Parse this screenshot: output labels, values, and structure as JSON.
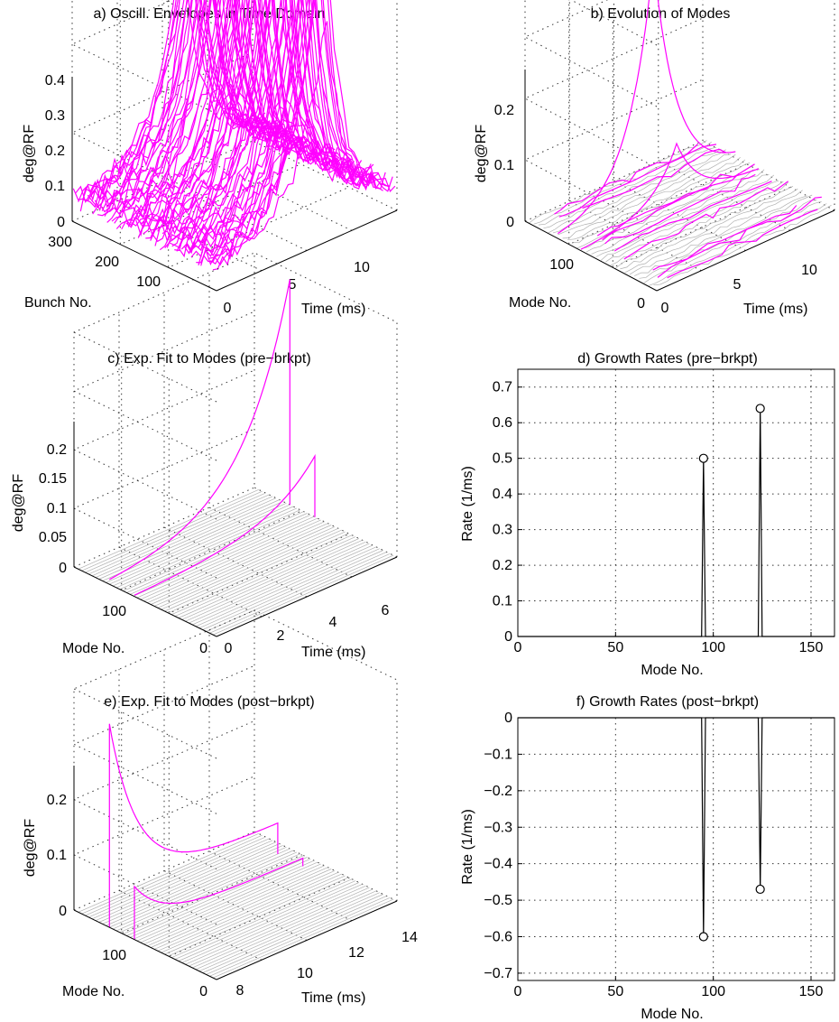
{
  "chart_data": [
    {
      "id": "a",
      "type": "3d-line",
      "title": "a) Oscill. Envelopes in Time Domain",
      "xlabel": "Time   (ms)",
      "ylabel": "Bunch No.",
      "zlabel": "deg@RF",
      "x_ticks": [
        "0",
        "5",
        "10"
      ],
      "y_ticks": [
        "100",
        "200",
        "300"
      ],
      "z_ticks": [
        "0",
        "0.1",
        "0.2",
        "0.3",
        "0.4"
      ],
      "xlim": [
        0,
        13
      ],
      "ylim": [
        0,
        330
      ],
      "zlim": [
        0,
        0.4
      ],
      "peak_time_ms": 8,
      "peak_amplitude": 0.38,
      "line_color": "#ff00ff",
      "grid": true
    },
    {
      "id": "b",
      "type": "3d-line",
      "title": "b) Evolution of Modes",
      "xlabel": "Time (ms)",
      "ylabel": "Mode No.",
      "zlabel": "deg@RF",
      "x_ticks": [
        "0",
        "5",
        "10"
      ],
      "y_ticks": [
        "0",
        "100"
      ],
      "z_ticks": [
        "0",
        "0.1",
        "0.2"
      ],
      "xlim": [
        0,
        13
      ],
      "ylim": [
        0,
        165
      ],
      "zlim": [
        0,
        0.25
      ],
      "series": [
        {
          "mode": 124,
          "peak_time_ms": 7,
          "peak_value": 0.24
        },
        {
          "mode": 95,
          "peak_time_ms": 7,
          "peak_value": 0.065
        }
      ],
      "line_color": "#ff00ff",
      "background_line_color": "#b0b0b0",
      "grid": true
    },
    {
      "id": "c",
      "type": "3d-line",
      "title": "c) Exp. Fit to Modes (pre−brkpt)",
      "xlabel": "Time (ms)",
      "ylabel": "Mode No.",
      "zlabel": "deg@RF",
      "x_ticks": [
        "0",
        "2",
        "4",
        "6"
      ],
      "y_ticks": [
        "0",
        "100"
      ],
      "z_ticks": [
        "0",
        "0.05",
        "0.1",
        "0.15",
        "0.2"
      ],
      "xlim": [
        0,
        7
      ],
      "ylim": [
        0,
        165
      ],
      "zlim": [
        0,
        0.25
      ],
      "series": [
        {
          "mode": 124,
          "end_time_ms": 7,
          "end_value": 0.24
        },
        {
          "mode": 95,
          "end_time_ms": 7,
          "end_value": 0.065
        }
      ],
      "line_color": "#ff00ff",
      "background_line_color": "#b0b0b0",
      "grid": true
    },
    {
      "id": "d",
      "type": "stem",
      "title": "d) Growth Rates (pre−brkpt)",
      "xlabel": "Mode No.",
      "ylabel": "Rate   (1/ms)",
      "x_ticks": [
        "0",
        "50",
        "100",
        "150"
      ],
      "y_ticks": [
        "0",
        "0.1",
        "0.2",
        "0.3",
        "0.4",
        "0.5",
        "0.6",
        "0.7"
      ],
      "xlim": [
        0,
        162
      ],
      "ylim": [
        0,
        0.75
      ],
      "points": [
        {
          "x": 95,
          "y": 0.5
        },
        {
          "x": 124,
          "y": 0.64
        }
      ],
      "grid": true
    },
    {
      "id": "e",
      "type": "3d-line",
      "title": "e) Exp. Fit to Modes (post−brkpt)",
      "xlabel": "Time (ms)",
      "ylabel": "Mode No.",
      "zlabel": "deg@RF",
      "x_ticks": [
        "8",
        "10",
        "12",
        "14"
      ],
      "y_ticks": [
        "0",
        "100"
      ],
      "z_ticks": [
        "0",
        "0.1",
        "0.2"
      ],
      "xlim": [
        7,
        14.5
      ],
      "ylim": [
        0,
        165
      ],
      "zlim": [
        0,
        0.25
      ],
      "series": [
        {
          "mode": 124,
          "start_time_ms": 7,
          "start_value": 0.23
        },
        {
          "mode": 95,
          "start_time_ms": 7,
          "start_value": 0.06
        }
      ],
      "line_color": "#ff00ff",
      "background_line_color": "#b0b0b0",
      "grid": true
    },
    {
      "id": "f",
      "type": "stem",
      "title": "f) Growth Rates (post−brkpt)",
      "xlabel": "Mode No.",
      "ylabel": "Rate   (1/ms)",
      "x_ticks": [
        "0",
        "50",
        "100",
        "150"
      ],
      "y_ticks": [
        "0",
        "−0.1",
        "−0.2",
        "−0.3",
        "−0.4",
        "−0.5",
        "−0.6",
        "−0.7"
      ],
      "xlim": [
        0,
        162
      ],
      "ylim": [
        -0.72,
        0
      ],
      "points": [
        {
          "x": 95,
          "y": -0.6
        },
        {
          "x": 124,
          "y": -0.47
        }
      ],
      "grid": true
    }
  ]
}
